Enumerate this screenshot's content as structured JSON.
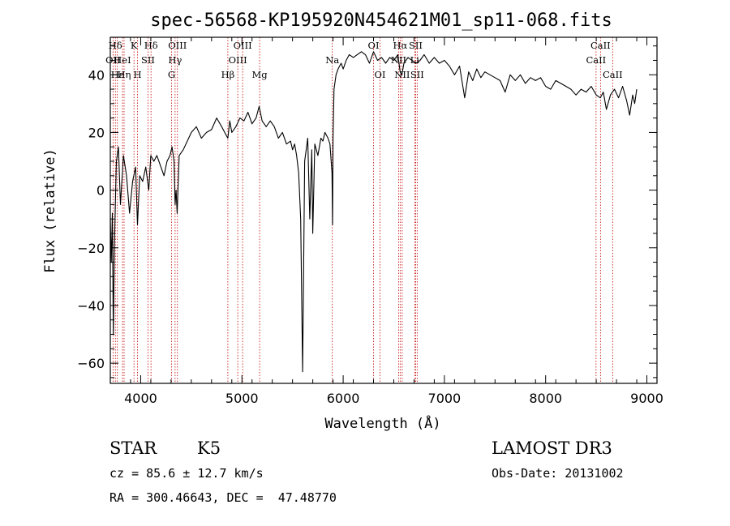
{
  "chart_data": {
    "type": "line",
    "title": "spec-56568-KP195920N454621M01_sp11-068.fits",
    "xlabel": "Wavelength (Å)",
    "ylabel": "Flux (relative)",
    "xlim": [
      3700,
      9100
    ],
    "ylim": [
      -67,
      53
    ],
    "xticks": [
      4000,
      5000,
      6000,
      7000,
      8000,
      9000
    ],
    "yticks": [
      -60,
      -40,
      -20,
      0,
      20,
      40
    ],
    "series": [
      {
        "name": "flux",
        "x": [
          3700,
          3710,
          3720,
          3730,
          3740,
          3750,
          3760,
          3780,
          3800,
          3830,
          3860,
          3890,
          3920,
          3950,
          3968,
          3990,
          4020,
          4050,
          4080,
          4100,
          4130,
          4160,
          4200,
          4230,
          4260,
          4290,
          4310,
          4330,
          4340,
          4350,
          4360,
          4380,
          4420,
          4460,
          4500,
          4550,
          4600,
          4650,
          4700,
          4750,
          4800,
          4830,
          4861,
          4880,
          4900,
          4940,
          4980,
          5020,
          5060,
          5100,
          5140,
          5170,
          5200,
          5240,
          5280,
          5320,
          5360,
          5400,
          5440,
          5480,
          5500,
          5520,
          5540,
          5560,
          5580,
          5600,
          5620,
          5650,
          5670,
          5690,
          5700,
          5720,
          5750,
          5780,
          5800,
          5820,
          5850,
          5870,
          5890,
          5895,
          5900,
          5910,
          5930,
          5950,
          5980,
          6000,
          6030,
          6060,
          6100,
          6140,
          6180,
          6220,
          6260,
          6300,
          6340,
          6380,
          6420,
          6460,
          6500,
          6540,
          6563,
          6580,
          6600,
          6640,
          6680,
          6720,
          6760,
          6800,
          6850,
          6900,
          6950,
          7000,
          7050,
          7100,
          7150,
          7200,
          7240,
          7280,
          7320,
          7360,
          7400,
          7450,
          7500,
          7550,
          7600,
          7650,
          7700,
          7750,
          7800,
          7850,
          7900,
          7950,
          8000,
          8050,
          8100,
          8150,
          8200,
          8250,
          8300,
          8350,
          8400,
          8450,
          8500,
          8540,
          8570,
          8600,
          8640,
          8680,
          8720,
          8760,
          8800,
          8830,
          8860,
          8880,
          8900
        ],
        "y": [
          -10,
          -25,
          -8,
          -50,
          -20,
          -5,
          10,
          15,
          -5,
          12,
          5,
          -8,
          3,
          8,
          -12,
          5,
          3,
          8,
          0,
          12,
          10,
          12,
          8,
          5,
          10,
          12,
          15,
          10,
          -5,
          0,
          -8,
          12,
          14,
          17,
          20,
          22,
          18,
          20,
          21,
          25,
          22,
          20,
          18,
          24,
          20,
          22,
          25,
          24,
          27,
          23,
          25,
          29,
          24,
          22,
          24,
          22,
          18,
          20,
          16,
          17,
          14,
          16,
          12,
          6,
          -10,
          -63,
          10,
          18,
          -10,
          14,
          -15,
          16,
          12,
          18,
          17,
          20,
          18,
          16,
          6,
          -12,
          18,
          35,
          40,
          42,
          44,
          42,
          45,
          47,
          46,
          47,
          48,
          47,
          44,
          48,
          45,
          46,
          44,
          46,
          45,
          47,
          41,
          40,
          44,
          46,
          45,
          44,
          45,
          47,
          44,
          46,
          44,
          45,
          43,
          40,
          43,
          32,
          41,
          38,
          42,
          39,
          41,
          40,
          39,
          38,
          34,
          40,
          38,
          40,
          37,
          39,
          38,
          39,
          36,
          35,
          38,
          37,
          36,
          35,
          33,
          35,
          34,
          36,
          33,
          32,
          34,
          28,
          33,
          35,
          32,
          36,
          31,
          26,
          33,
          30,
          35
        ]
      }
    ],
    "lines": [
      {
        "label": "Hδ",
        "x": 3750,
        "row": 0
      },
      {
        "label": "OII",
        "x": 3727,
        "row": 1
      },
      {
        "label": "Hε",
        "x": 3770,
        "row": 2
      },
      {
        "label": "K",
        "x": 3934,
        "row": 0
      },
      {
        "label": "HeI",
        "x": 3820,
        "row": 1
      },
      {
        "label": "Hη",
        "x": 3836,
        "row": 2
      },
      {
        "label": "H",
        "x": 3969,
        "row": 2
      },
      {
        "label": "SII",
        "x": 4072,
        "row": 1
      },
      {
        "label": "Hδ",
        "x": 4102,
        "row": 0
      },
      {
        "label": "OIII",
        "x": 4363,
        "row": 0
      },
      {
        "label": "Hγ",
        "x": 4340,
        "row": 1
      },
      {
        "label": "G",
        "x": 4305,
        "row": 2
      },
      {
        "label": "Hβ",
        "x": 4861,
        "row": 2
      },
      {
        "label": "OIII",
        "x": 5007,
        "row": 0
      },
      {
        "label": "OIII",
        "x": 4959,
        "row": 1
      },
      {
        "label": "Mg",
        "x": 5175,
        "row": 2
      },
      {
        "label": "Na",
        "x": 5893,
        "row": 1
      },
      {
        "label": "OI",
        "x": 6300,
        "row": 0
      },
      {
        "label": "OI",
        "x": 6364,
        "row": 2
      },
      {
        "label": "Hα",
        "x": 6563,
        "row": 0
      },
      {
        "label": "NII",
        "x": 6548,
        "row": 1
      },
      {
        "label": "NII",
        "x": 6583,
        "row": 2
      },
      {
        "label": "SII",
        "x": 6716,
        "row": 0
      },
      {
        "label": "SII",
        "x": 6731,
        "row": 2
      },
      {
        "label": "Li",
        "x": 6707,
        "row": 1
      },
      {
        "label": "CaII",
        "x": 8542,
        "row": 0
      },
      {
        "label": "CaII",
        "x": 8498,
        "row": 1
      },
      {
        "label": "CaII",
        "x": 8662,
        "row": 2
      }
    ]
  },
  "info": {
    "object_class": "STAR",
    "subclass": "K5",
    "survey": "LAMOST DR3",
    "cz": "cz = 85.6 ± 12.7 km/s",
    "obs_date": "Obs-Date: 20131002",
    "radec": "RA = 300.46643, DEC =  47.48770"
  },
  "colors": {
    "line_marker": "#c00000",
    "spectrum": "#000000"
  }
}
